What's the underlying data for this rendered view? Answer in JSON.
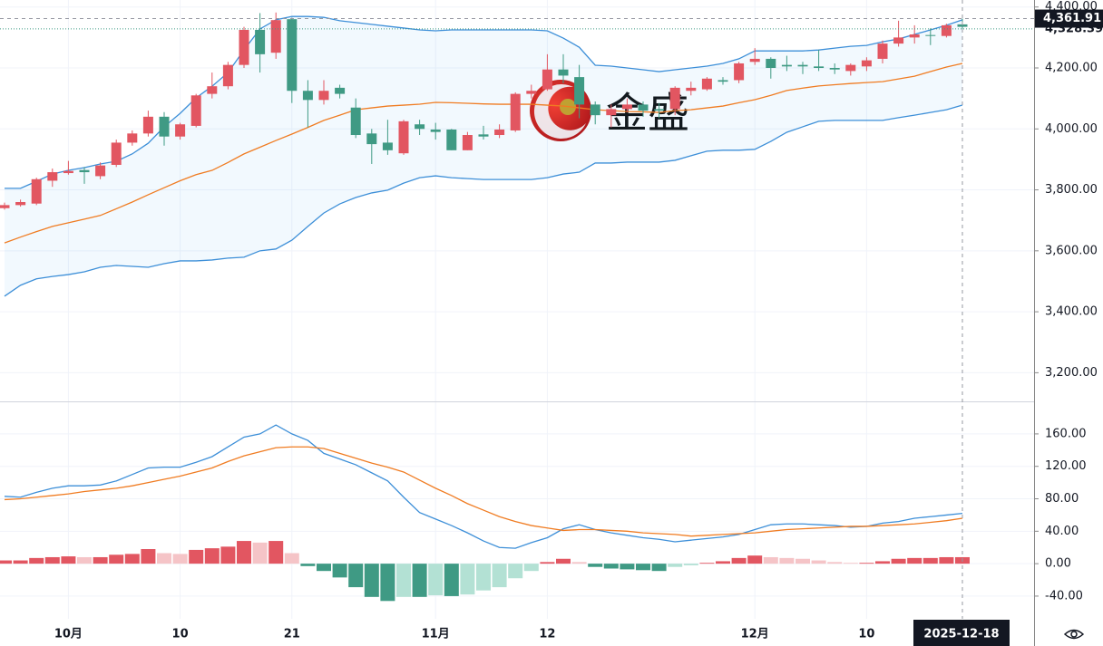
{
  "watermark": "金盛",
  "chart_data": [
    {
      "type": "candlestick",
      "x": [
        "2025-09-25",
        "2025-09-26",
        "2025-09-29",
        "2025-09-30",
        "2025-10-01",
        "2025-10-02",
        "2025-10-03",
        "2025-10-06",
        "2025-10-07",
        "2025-10-08",
        "2025-10-09",
        "2025-10-10",
        "2025-10-13",
        "2025-10-14",
        "2025-10-15",
        "2025-10-16",
        "2025-10-17",
        "2025-10-20",
        "2025-10-21",
        "2025-10-22",
        "2025-10-23",
        "2025-10-24",
        "2025-10-27",
        "2025-10-28",
        "2025-10-29",
        "2025-10-30",
        "2025-10-31",
        "2025-11-03",
        "2025-11-04",
        "2025-11-05",
        "2025-11-06",
        "2025-11-07",
        "2025-11-10",
        "2025-11-11",
        "2025-11-12",
        "2025-11-13",
        "2025-11-14",
        "2025-11-17",
        "2025-11-18",
        "2025-11-19",
        "2025-11-20",
        "2025-11-21",
        "2025-11-24",
        "2025-11-25",
        "2025-11-26",
        "2025-11-27",
        "2025-11-28",
        "2025-12-01",
        "2025-12-02",
        "2025-12-03",
        "2025-12-04",
        "2025-12-05",
        "2025-12-08",
        "2025-12-09",
        "2025-12-10",
        "2025-12-11",
        "2025-12-12",
        "2025-12-15",
        "2025-12-16",
        "2025-12-17",
        "2025-12-18"
      ],
      "open": [
        3740,
        3750,
        3755,
        3830,
        3855,
        3865,
        3845,
        3882,
        3955,
        3985,
        4040,
        3975,
        4010,
        4115,
        4140,
        4210,
        4325,
        4250,
        4360,
        4125,
        4095,
        4135,
        4070,
        3985,
        3955,
        3920,
        4015,
        3998,
        3998,
        3930,
        3982,
        3980,
        3995,
        4115,
        4130,
        4195,
        4170,
        4080,
        4045,
        4065,
        4080,
        4065,
        4065,
        4125,
        4130,
        4160,
        4160,
        4220,
        4230,
        4210,
        4210,
        4205,
        4200,
        4190,
        4205,
        4230,
        4280,
        4300,
        4308,
        4305,
        4343
      ],
      "high": [
        3758,
        3768,
        3840,
        3870,
        3895,
        3875,
        3890,
        3965,
        3995,
        4060,
        4055,
        4020,
        4115,
        4185,
        4220,
        4335,
        4380,
        4382,
        4365,
        4160,
        4160,
        4145,
        4100,
        4000,
        4030,
        4030,
        4030,
        4020,
        4000,
        3990,
        4010,
        4015,
        4120,
        4145,
        4245,
        4245,
        4210,
        4090,
        4080,
        4100,
        4090,
        4085,
        4140,
        4155,
        4170,
        4170,
        4220,
        4265,
        4235,
        4240,
        4220,
        4260,
        4215,
        4215,
        4235,
        4290,
        4355,
        4340,
        4330,
        4345,
        4362
      ],
      "low": [
        3735,
        3745,
        3750,
        3810,
        3850,
        3820,
        3835,
        3875,
        3945,
        3975,
        3945,
        3965,
        4005,
        4100,
        4130,
        4200,
        4185,
        4230,
        4085,
        4005,
        4080,
        4100,
        3970,
        3885,
        3915,
        3915,
        3980,
        3965,
        3930,
        3930,
        3965,
        3970,
        3990,
        4100,
        4125,
        4150,
        4035,
        4015,
        4005,
        4055,
        4040,
        4035,
        4045,
        4110,
        4125,
        4145,
        4150,
        4210,
        4165,
        4190,
        4180,
        4190,
        4180,
        4175,
        4190,
        4215,
        4270,
        4280,
        4275,
        4300,
        4325
      ],
      "close": [
        3750,
        3760,
        3835,
        3858,
        3862,
        3858,
        3880,
        3955,
        3985,
        4040,
        3975,
        4015,
        4110,
        4140,
        4210,
        4325,
        4245,
        4357,
        4125,
        4095,
        4125,
        4115,
        3980,
        3950,
        3930,
        4025,
        4000,
        3990,
        3930,
        3980,
        3975,
        3998,
        4115,
        4125,
        4195,
        4175,
        4080,
        4045,
        4065,
        4080,
        4060,
        4060,
        4135,
        4135,
        4165,
        4155,
        4215,
        4230,
        4200,
        4205,
        4205,
        4200,
        4195,
        4210,
        4225,
        4280,
        4300,
        4310,
        4305,
        4340,
        4335
      ],
      "up_color": "#e25661",
      "down_color": "#3f9a84",
      "series": [
        {
          "color": "#3d8fd8",
          "values": [
            3805,
            3805,
            3828,
            3852,
            3864,
            3873,
            3885,
            3894,
            3918,
            3953,
            4007,
            4051,
            4102,
            4140,
            4185,
            4259,
            4328,
            4358,
            4369,
            4369,
            4366,
            4355,
            4349,
            4343,
            4337,
            4331,
            4325,
            4322,
            4325,
            4325,
            4325,
            4325,
            4325,
            4325,
            4322,
            4298,
            4268,
            4209,
            4206,
            4200,
            4194,
            4188,
            4194,
            4200,
            4206,
            4215,
            4230,
            4256,
            4256,
            4256,
            4256,
            4259,
            4265,
            4271,
            4274,
            4286,
            4295,
            4310,
            4325,
            4340,
            4358
          ]
        },
        {
          "color": "#f07c22",
          "values": [
            3626,
            3645,
            3663,
            3680,
            3692,
            3704,
            3716,
            3738,
            3760,
            3784,
            3807,
            3830,
            3850,
            3864,
            3890,
            3918,
            3940,
            3962,
            3983,
            4005,
            4028,
            4045,
            4063,
            4069,
            4075,
            4078,
            4081,
            4087,
            4086,
            4084,
            4082,
            4081,
            4081,
            4081,
            4078,
            4075,
            4069,
            4063,
            4060,
            4057,
            4056,
            4054,
            4060,
            4063,
            4069,
            4075,
            4086,
            4096,
            4110,
            4126,
            4134,
            4141,
            4145,
            4149,
            4152,
            4155,
            4164,
            4173,
            4188,
            4203,
            4215
          ]
        },
        {
          "color": "#3d8fd8",
          "values": [
            3451,
            3487,
            3508,
            3516,
            3522,
            3531,
            3546,
            3552,
            3549,
            3546,
            3558,
            3567,
            3567,
            3570,
            3576,
            3579,
            3600,
            3606,
            3635,
            3680,
            3724,
            3754,
            3775,
            3790,
            3799,
            3822,
            3840,
            3846,
            3840,
            3837,
            3834,
            3834,
            3834,
            3834,
            3840,
            3852,
            3858,
            3888,
            3888,
            3891,
            3891,
            3891,
            3897,
            3912,
            3927,
            3930,
            3930,
            3933,
            3959,
            3989,
            4007,
            4025,
            4028,
            4028,
            4028,
            4028,
            4037,
            4045,
            4054,
            4063,
            4078
          ]
        }
      ],
      "band_fill": "rgba(33,150,243,0.06)",
      "ylim": [
        3106,
        4423
      ],
      "yticks": [
        {
          "value": 4400,
          "label": "4,400.00"
        },
        {
          "value": 4200,
          "label": "4,200.00"
        },
        {
          "value": 4000,
          "label": "4,000.00"
        },
        {
          "value": 3800,
          "label": "3,800.00"
        },
        {
          "value": 3600,
          "label": "3,600.00"
        },
        {
          "value": 3400,
          "label": "3,400.00"
        },
        {
          "value": 3200,
          "label": "3,200.00"
        }
      ],
      "xticks": [
        {
          "value": "2025-10-01",
          "label": "10月"
        },
        {
          "value": "2025-10-10",
          "label": "10"
        },
        {
          "value": "2025-10-21",
          "label": "21"
        },
        {
          "value": "2025-11-03",
          "label": "11月"
        },
        {
          "value": "2025-11-12",
          "label": "12"
        },
        {
          "value": "2025-12-01",
          "label": "12月"
        },
        {
          "value": "2025-12-10",
          "label": "10"
        }
      ],
      "last_price": {
        "value": 4328.39,
        "label": "4,328.39"
      },
      "crosshair": {
        "x": "2025-12-18",
        "price": {
          "value": 4361.91,
          "label": "4,361.91"
        }
      },
      "grid": true
    },
    {
      "type": "macd",
      "series": [
        {
          "color": "#3d8fd8",
          "values": [
            83,
            82,
            88,
            93,
            96,
            96,
            97,
            102,
            110,
            118,
            119,
            119,
            125,
            132,
            144,
            156,
            160,
            171,
            160,
            152,
            136,
            129,
            122,
            112,
            102,
            82,
            63,
            55,
            47,
            38,
            28,
            20,
            19,
            26,
            32,
            43,
            48,
            42,
            38,
            35,
            32,
            30,
            27,
            29,
            31,
            33,
            36,
            42,
            48,
            49,
            49,
            48,
            47,
            45,
            46,
            50,
            52,
            56,
            58,
            60,
            62
          ]
        },
        {
          "color": "#f07c22",
          "values": [
            79,
            80,
            82,
            84,
            86,
            89,
            91,
            93,
            96,
            100,
            104,
            108,
            113,
            118,
            126,
            133,
            138,
            143,
            144,
            144,
            142,
            136,
            130,
            124,
            119,
            113,
            103,
            93,
            84,
            74,
            66,
            58,
            52,
            47,
            44,
            41,
            42,
            42,
            41,
            40,
            38,
            37,
            36,
            34,
            35,
            36,
            37,
            38,
            40,
            42,
            43,
            44,
            45,
            46,
            46,
            47,
            48,
            49,
            51,
            53,
            56
          ]
        }
      ],
      "histogram": {
        "values": [
          4,
          4,
          7,
          8,
          9,
          8,
          8,
          11,
          12,
          18,
          13,
          12,
          17,
          19,
          21,
          28,
          26,
          28,
          13,
          -3,
          -9,
          -17,
          -29,
          -41,
          -46,
          -41,
          -41,
          -39,
          -40,
          -38,
          -33,
          -29,
          -18,
          -9,
          2,
          6,
          2,
          -4,
          -6,
          -7,
          -8,
          -9,
          -4,
          -2,
          1,
          3,
          7,
          10,
          8,
          7,
          6,
          4,
          2,
          1,
          1,
          3,
          6,
          7,
          7,
          8,
          8
        ],
        "colors": [
          "#e25661",
          "#f5c4c7",
          "#3f9a84",
          "#b3e1d4"
        ]
      },
      "ylim": [
        -68,
        199
      ],
      "yticks": [
        {
          "value": 160,
          "label": "160.00"
        },
        {
          "value": 120,
          "label": "120.00"
        },
        {
          "value": 80,
          "label": "80.00"
        },
        {
          "value": 40,
          "label": "40.00"
        },
        {
          "value": 0,
          "label": "0.00"
        },
        {
          "value": -40,
          "label": "-40.00"
        }
      ],
      "grid": true
    }
  ]
}
